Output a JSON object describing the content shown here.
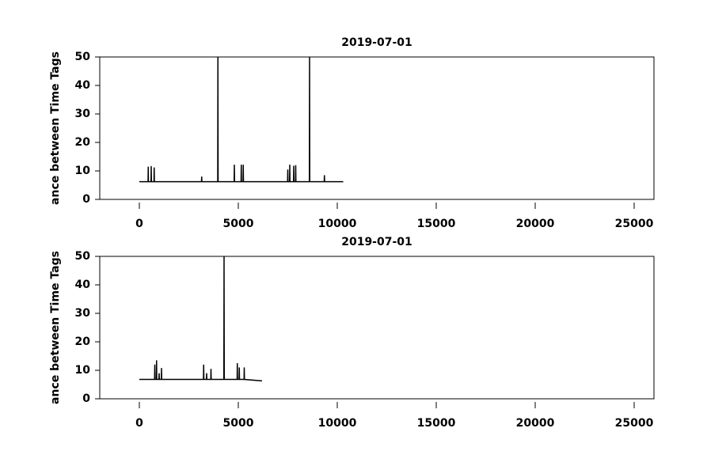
{
  "chart_data": [
    {
      "type": "line",
      "title": "2019-07-01",
      "ylabel": "ance between Time Tags",
      "x": [
        0,
        440,
        450,
        460,
        590,
        600,
        610,
        740,
        750,
        760,
        3140,
        3150,
        3160,
        3960,
        3970,
        3980,
        4790,
        4800,
        4810,
        5140,
        5150,
        5160,
        5240,
        5250,
        5260,
        7490,
        7500,
        7510,
        7590,
        7600,
        7610,
        7790,
        7800,
        7810,
        7890,
        7900,
        7910,
        8590,
        8600,
        8610,
        9340,
        9350,
        9360,
        10300
      ],
      "series": [
        {
          "color": "#000000",
          "values": [
            6.2,
            6.2,
            11.5,
            6.2,
            6.2,
            11.7,
            6.2,
            6.2,
            11.2,
            6.2,
            6.2,
            8,
            6.2,
            6.2,
            50,
            6.2,
            6.2,
            12.2,
            6.2,
            6.2,
            12.2,
            6.2,
            6.2,
            12.2,
            6.2,
            6.2,
            10.5,
            6.2,
            6.2,
            12.2,
            6.2,
            6.2,
            11.8,
            6.2,
            6.2,
            12,
            6.2,
            6.2,
            50,
            6.2,
            6.2,
            8.5,
            6.2,
            6.2
          ]
        }
      ],
      "xlim": [
        -2000,
        26000
      ],
      "xticks": [
        0,
        5000,
        10000,
        15000,
        20000,
        25000
      ],
      "ylim": [
        0,
        50
      ],
      "yticks": [
        0,
        10,
        20,
        30,
        40,
        50
      ]
    },
    {
      "type": "line",
      "title": "2019-07-01",
      "ylabel": "ance between Time Tags",
      "x": [
        0,
        770,
        780,
        790,
        860,
        870,
        880,
        990,
        1000,
        1010,
        1110,
        1120,
        1130,
        3240,
        3250,
        3260,
        3390,
        3400,
        3410,
        3610,
        3620,
        3630,
        4270,
        4280,
        4290,
        4940,
        4950,
        4960,
        5040,
        5050,
        5060,
        5290,
        5300,
        5310,
        6200
      ],
      "series": [
        {
          "color": "#000000",
          "values": [
            6.8,
            6.8,
            12,
            6.8,
            6.8,
            13.5,
            6.8,
            6.8,
            9,
            6.8,
            6.8,
            10.8,
            6.8,
            6.8,
            12,
            6.8,
            6.8,
            9,
            6.8,
            6.8,
            10.5,
            6.8,
            6.8,
            50,
            6.8,
            6.8,
            12.5,
            6.8,
            6.8,
            11,
            6.8,
            6.8,
            11,
            6.8,
            6.3
          ]
        }
      ],
      "xlim": [
        -2000,
        26000
      ],
      "xticks": [
        0,
        5000,
        10000,
        15000,
        20000,
        25000
      ],
      "ylim": [
        0,
        50
      ],
      "yticks": [
        0,
        10,
        20,
        30,
        40,
        50
      ]
    }
  ]
}
